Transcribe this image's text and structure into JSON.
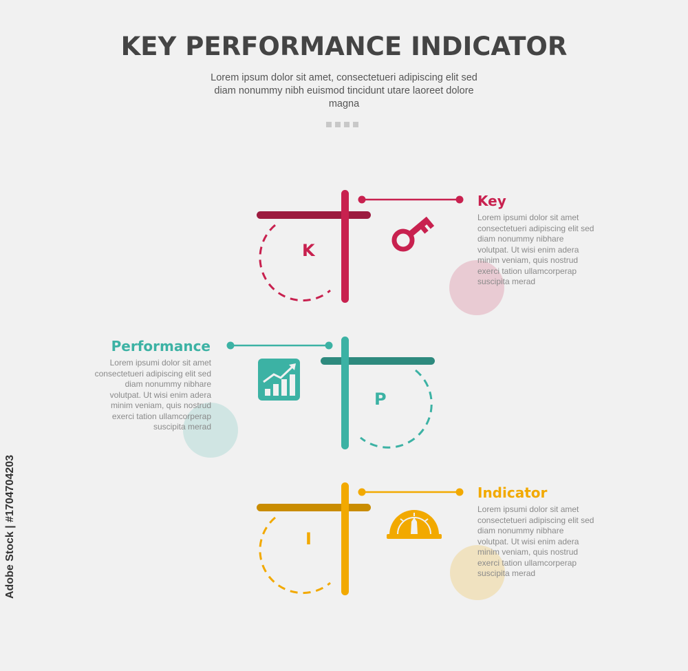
{
  "header": {
    "title": "KEY PERFORMANCE INDICATOR",
    "subtitle": "Lorem ipsum dolor sit amet, consectetueri adipiscing elit sed diam nonummy nibh euismod tincidunt utare laoreet dolore magna"
  },
  "items": [
    {
      "title": "Key",
      "letter": "K",
      "description": "Lorem ipsumi dolor sit amet consectetueri adipiscing elit sed diam nonummy nibhare volutpat. Ut wisi enim adera minim veniam, quis nostrud exerci tation ullamcorperap suscipita merad",
      "icon": "key-icon",
      "color": "#c8214f",
      "dark_color": "#9c1b3f"
    },
    {
      "title": "Performance",
      "letter": "P",
      "description": "Lorem ipsumi dolor sit amet consectetueri adipiscing elit sed diam nonummy nibhare volutpat. Ut wisi enim adera minim veniam, quis nostrud exerci tation ullamcorperap suscipita merad",
      "icon": "chart-growth-icon",
      "color": "#3cb2a4",
      "dark_color": "#2e8a7e"
    },
    {
      "title": "Indicator",
      "letter": "I",
      "description": "Lorem ipsumi dolor sit amet consectetueri adipiscing elit sed diam nonummy nibhare volutpat. Ut wisi enim adera minim veniam, quis nostrud exerci tation ullamcorperap suscipita merad",
      "icon": "speedometer-icon",
      "color": "#f2a900",
      "dark_color": "#c98c00"
    }
  ],
  "watermark": {
    "stock_id": "Adobe Stock | #1704704203"
  }
}
